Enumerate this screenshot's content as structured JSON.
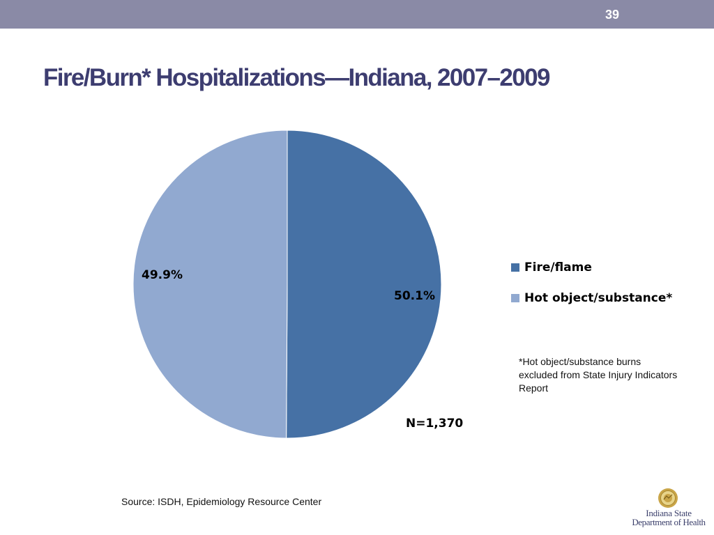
{
  "slide": {
    "number": "39",
    "title": "Fire/Burn* Hospitalizations—Indiana, 2007–2009"
  },
  "chart_data": {
    "type": "pie",
    "categories": [
      "Fire/flame",
      "Hot object/substance*"
    ],
    "values": [
      50.1,
      49.9
    ],
    "value_labels": [
      "50.1%",
      "49.9%"
    ],
    "colors": [
      "#4671a5",
      "#91a9d0"
    ],
    "legend_placement": "right"
  },
  "footnote": "*Hot object/substance burns excluded from State Injury Indicators Report",
  "sample_size": "N=1,370",
  "source": "Source: ISDH, Epidemiology Resource Center",
  "logo": {
    "line1": "Indiana State",
    "line2": "Department of Health"
  },
  "colors": {
    "top_bar": "#8a8aa6",
    "title": "#3d3d70"
  }
}
